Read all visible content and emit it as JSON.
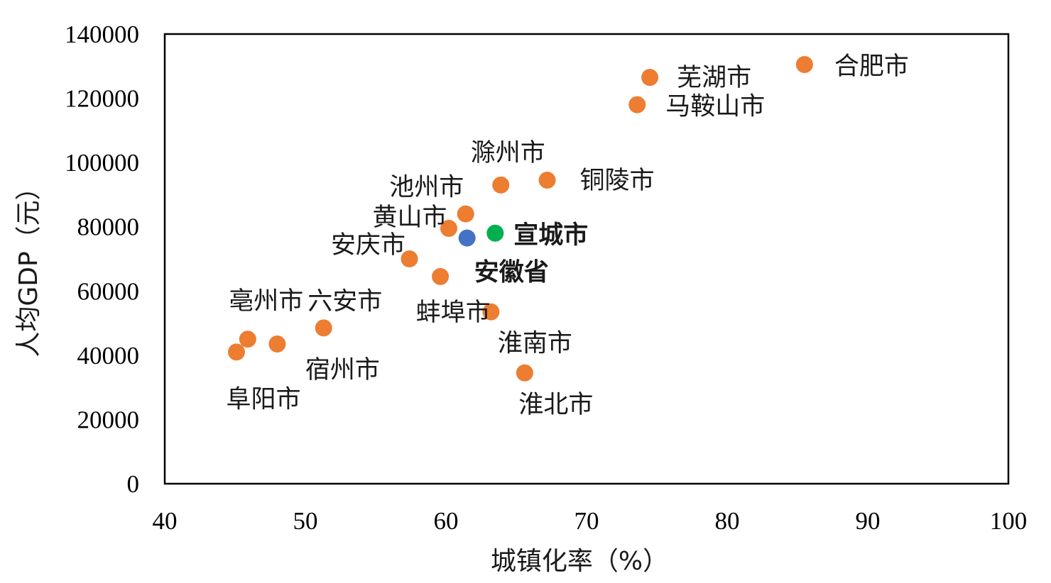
{
  "chart_data": {
    "type": "scatter",
    "title": "",
    "xlabel": "城镇化率（%）",
    "ylabel": "人均GDP（元）",
    "xlim": [
      40,
      100
    ],
    "ylim": [
      0,
      140000
    ],
    "xticks": [
      40,
      50,
      60,
      70,
      80,
      90,
      100
    ],
    "yticks": [
      0,
      20000,
      40000,
      60000,
      80000,
      100000,
      120000,
      140000
    ],
    "grid": false,
    "legend": "none",
    "colors": {
      "city": "#ED7D31",
      "province": "#4472C4",
      "highlight": "#00B050",
      "province_label": "#2E75B6"
    },
    "points": [
      {
        "label": "合肥市",
        "x": 85.5,
        "y": 130500,
        "group": "city"
      },
      {
        "label": "芜湖市",
        "x": 74.5,
        "y": 126500,
        "group": "city"
      },
      {
        "label": "马鞍山市",
        "x": 73.6,
        "y": 118000,
        "group": "city"
      },
      {
        "label": "铜陵市",
        "x": 67.2,
        "y": 94500,
        "group": "city"
      },
      {
        "label": "滁州市",
        "x": 63.9,
        "y": 93000,
        "group": "city"
      },
      {
        "label": "池州市",
        "x": 61.4,
        "y": 84000,
        "group": "city"
      },
      {
        "label": "黄山市",
        "x": 60.2,
        "y": 79500,
        "group": "city"
      },
      {
        "label": "宣城市",
        "x": 63.5,
        "y": 78000,
        "group": "highlight"
      },
      {
        "label": "安徽省",
        "x": 61.5,
        "y": 76500,
        "group": "province"
      },
      {
        "label": "安庆市",
        "x": 57.4,
        "y": 70000,
        "group": "city"
      },
      {
        "label": "蚌埠市",
        "x": 59.6,
        "y": 64500,
        "group": "city"
      },
      {
        "label": "六安市",
        "x": 51.3,
        "y": 48500,
        "group": "city"
      },
      {
        "label": "亳州市",
        "x": 45.9,
        "y": 45000,
        "group": "city"
      },
      {
        "label": "宿州市",
        "x": 48.0,
        "y": 43500,
        "group": "city"
      },
      {
        "label": "阜阳市",
        "x": 45.1,
        "y": 41000,
        "group": "city"
      },
      {
        "label": "淮南市",
        "x": 63.2,
        "y": 53500,
        "group": "city"
      },
      {
        "label": "淮北市",
        "x": 65.6,
        "y": 34500,
        "group": "city"
      }
    ]
  }
}
